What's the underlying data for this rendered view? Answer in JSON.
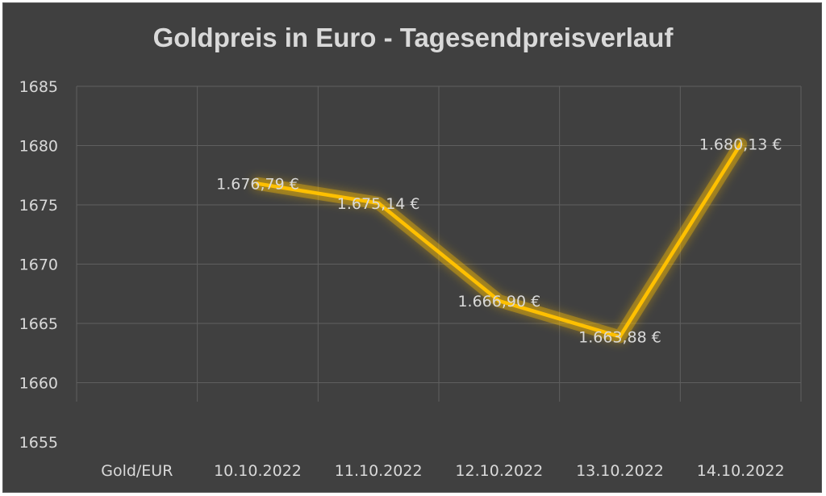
{
  "chart_data": {
    "type": "line",
    "title": "Goldpreis in Euro - Tagesendpreisverlauf",
    "categories": [
      "Gold/EUR",
      "10.10.2022",
      "11.10.2022",
      "12.10.2022",
      "13.10.2022",
      "14.10.2022"
    ],
    "series": [
      {
        "values": [
          null,
          1676.79,
          1675.14,
          1666.9,
          1663.88,
          1680.13
        ],
        "labels": [
          "",
          "1.676,79 €",
          "1.675,14 €",
          "1.666,90 €",
          "1.663,88 €",
          "1.680,13 €"
        ],
        "color": "#FFC000"
      }
    ],
    "ylim": [
      1655,
      1685
    ],
    "yticks": [
      "1655",
      "1660",
      "1665",
      "1670",
      "1675",
      "1680",
      "1685"
    ],
    "ytick_values": [
      1655,
      1660,
      1665,
      1670,
      1675,
      1680,
      1685
    ],
    "grid": true,
    "legend": "none",
    "xlabel": "",
    "ylabel": "",
    "background_color": "#404040",
    "text_color": "#D9D9D9",
    "grid_color": "#5F5F5F"
  }
}
